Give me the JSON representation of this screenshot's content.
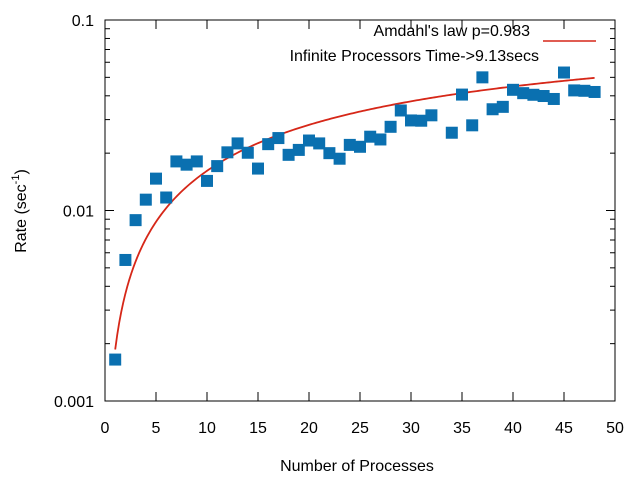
{
  "chart_data": {
    "type": "scatter",
    "title": "",
    "xlabel": "Number of Processes",
    "ylabel_main": "Rate (sec",
    "ylabel_exp": "-1",
    "ylabel_end": ")",
    "xlim": [
      0,
      50
    ],
    "ylim": [
      0.001,
      0.1
    ],
    "yscale": "log",
    "x_ticks": [
      0,
      5,
      10,
      15,
      20,
      25,
      30,
      35,
      40,
      45,
      50
    ],
    "x_tick_labels": [
      "0",
      "5",
      "10",
      "15",
      "20",
      "25",
      "30",
      "35",
      "40",
      "45",
      "50"
    ],
    "y_ticks": [
      0.001,
      0.01,
      0.1
    ],
    "y_tick_labels": [
      "0.001",
      "0.01",
      "0.1"
    ],
    "legend_position": "top-right",
    "legend": [
      {
        "label": "Amdahl's law p=0.983",
        "color": "#d62718",
        "kind": "line"
      },
      {
        "label": "Infinite Processors Time->9.13secs",
        "kind": "text"
      }
    ],
    "fit": {
      "name": "Amdahl's law p=0.983",
      "p": 0.983,
      "t_serial": 537.0,
      "color": "#d62718",
      "x_start": 1,
      "x_end": 48
    },
    "series": [
      {
        "name": "measured",
        "color": "#0a70b0",
        "marker": "square",
        "x": [
          1,
          2,
          3,
          4,
          5,
          6,
          7,
          8,
          9,
          10,
          11,
          12,
          13,
          14,
          15,
          16,
          17,
          18,
          19,
          20,
          21,
          22,
          23,
          24,
          25,
          26,
          27,
          28,
          29,
          30,
          31,
          32,
          34,
          35,
          36,
          37,
          38,
          39,
          40,
          41,
          42,
          43,
          44,
          45,
          46,
          47,
          48
        ],
        "y": [
          0.00165,
          0.0055,
          0.0089,
          0.0114,
          0.0147,
          0.0117,
          0.0181,
          0.0174,
          0.0181,
          0.0143,
          0.0171,
          0.0202,
          0.0225,
          0.0201,
          0.0166,
          0.0223,
          0.024,
          0.0196,
          0.0208,
          0.0233,
          0.0225,
          0.02,
          0.0187,
          0.0221,
          0.0216,
          0.0244,
          0.0236,
          0.0275,
          0.0335,
          0.0297,
          0.0296,
          0.0316,
          0.0256,
          0.0406,
          0.028,
          0.05,
          0.034,
          0.035,
          0.043,
          0.0413,
          0.0405,
          0.0399,
          0.0385,
          0.053,
          0.0427,
          0.0425,
          0.0419
        ]
      }
    ]
  }
}
